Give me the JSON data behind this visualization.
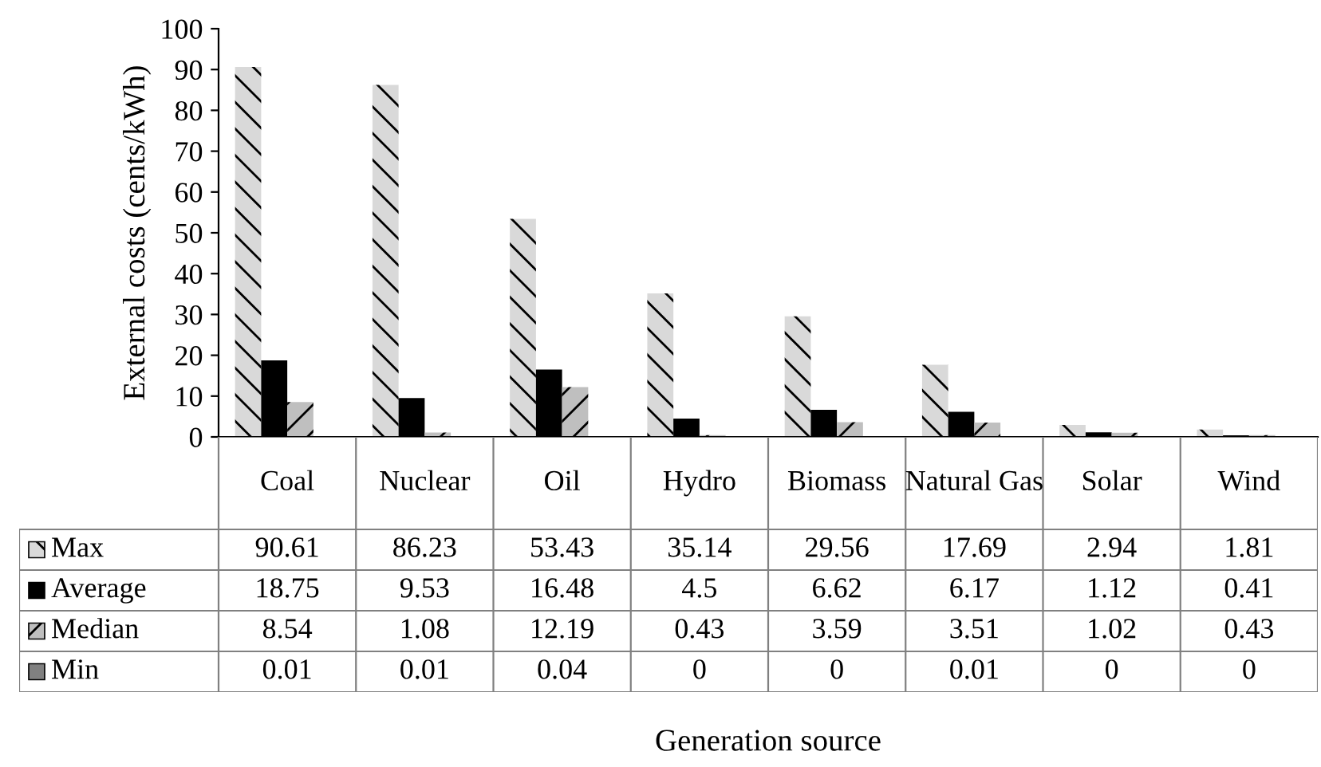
{
  "chart_data": {
    "type": "bar",
    "annotations": [
      "Generation source"
    ],
    "ylabel": "External costs (cents/kWh)",
    "categories": [
      "Coal",
      "Nuclear",
      "Oil",
      "Hydro",
      "Biomass",
      "Natural Gas",
      "Solar",
      "Wind"
    ],
    "series": [
      {
        "name": "Max",
        "color": "#d9d9d9",
        "values": [
          90.61,
          86.23,
          53.43,
          35.14,
          29.56,
          17.69,
          2.94,
          1.81
        ]
      },
      {
        "name": "Average",
        "color": "#000000",
        "values": [
          18.75,
          9.53,
          16.48,
          4.5,
          6.62,
          6.17,
          1.12,
          0.41
        ]
      },
      {
        "name": "Median",
        "color": "#bfbfbf",
        "values": [
          8.54,
          1.08,
          12.19,
          0.43,
          3.59,
          3.51,
          1.02,
          0.43
        ]
      },
      {
        "name": "Min",
        "color": "#808080",
        "values": [
          0.01,
          0.01,
          0.04,
          0,
          0,
          0.01,
          0,
          0
        ]
      }
    ],
    "ylim": [
      0,
      100
    ],
    "yticks": [
      0,
      10,
      20,
      30,
      40,
      50,
      60,
      70,
      80,
      90,
      100
    ],
    "grid": false,
    "data_labels": true,
    "legend": "bottom left"
  }
}
